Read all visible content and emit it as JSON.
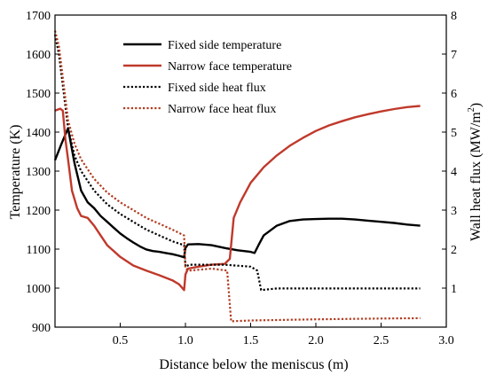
{
  "chart_data": {
    "type": "line",
    "xlabel": "Distance below the meniscus (m)",
    "ylabel_left": "Temperature (K)",
    "ylabel_right_base": "Wall heat flux (MW/m",
    "ylabel_right_sup": "2",
    "ylabel_right_tail": ")",
    "xlim": [
      0,
      3.0
    ],
    "ylim_left": [
      900,
      1700
    ],
    "ylim_right": [
      0,
      8
    ],
    "x_ticks": [
      "0.5",
      "1.0",
      "1.5",
      "2.0",
      "2.5",
      "3.0"
    ],
    "x_tick_values": [
      0.5,
      1.0,
      1.5,
      2.0,
      2.5,
      3.0
    ],
    "y_left_ticks": [
      "900",
      "1000",
      "1100",
      "1200",
      "1300",
      "1400",
      "1500",
      "1600",
      "1700"
    ],
    "y_left_tick_values": [
      900,
      1000,
      1100,
      1200,
      1300,
      1400,
      1500,
      1600,
      1700
    ],
    "y_right_ticks": [
      "1",
      "2",
      "3",
      "4",
      "5",
      "6",
      "7",
      "8"
    ],
    "y_right_tick_values": [
      1,
      2,
      3,
      4,
      5,
      6,
      7,
      8
    ],
    "legend_position": "top-right",
    "colors": {
      "black": "#000000",
      "red": "#c0392b",
      "dotted_red": "#b03a1e"
    },
    "series": [
      {
        "name": "Fixed side temperature",
        "axis": "left",
        "style": "solid",
        "color": "#000000",
        "points": [
          [
            0.0,
            1328
          ],
          [
            0.05,
            1370
          ],
          [
            0.1,
            1410
          ],
          [
            0.15,
            1320
          ],
          [
            0.2,
            1250
          ],
          [
            0.25,
            1220
          ],
          [
            0.3,
            1205
          ],
          [
            0.35,
            1185
          ],
          [
            0.4,
            1170
          ],
          [
            0.45,
            1155
          ],
          [
            0.5,
            1140
          ],
          [
            0.55,
            1128
          ],
          [
            0.6,
            1117
          ],
          [
            0.65,
            1107
          ],
          [
            0.7,
            1099
          ],
          [
            0.75,
            1095
          ],
          [
            0.8,
            1093
          ],
          [
            0.85,
            1090
          ],
          [
            0.9,
            1087
          ],
          [
            0.95,
            1083
          ],
          [
            0.99,
            1079
          ],
          [
            1.0,
            1103
          ],
          [
            1.02,
            1112
          ],
          [
            1.1,
            1113
          ],
          [
            1.2,
            1110
          ],
          [
            1.3,
            1103
          ],
          [
            1.4,
            1097
          ],
          [
            1.5,
            1093
          ],
          [
            1.53,
            1090
          ],
          [
            1.56,
            1110
          ],
          [
            1.6,
            1135
          ],
          [
            1.7,
            1160
          ],
          [
            1.8,
            1172
          ],
          [
            1.9,
            1176
          ],
          [
            2.0,
            1177
          ],
          [
            2.1,
            1178
          ],
          [
            2.2,
            1178
          ],
          [
            2.3,
            1176
          ],
          [
            2.4,
            1173
          ],
          [
            2.5,
            1170
          ],
          [
            2.6,
            1167
          ],
          [
            2.7,
            1163
          ],
          [
            2.8,
            1160
          ]
        ]
      },
      {
        "name": "Narrow face temperature",
        "axis": "left",
        "style": "solid",
        "color": "#c0392b",
        "points": [
          [
            0.0,
            1455
          ],
          [
            0.04,
            1460
          ],
          [
            0.06,
            1455
          ],
          [
            0.08,
            1380
          ],
          [
            0.1,
            1330
          ],
          [
            0.13,
            1250
          ],
          [
            0.17,
            1205
          ],
          [
            0.2,
            1185
          ],
          [
            0.25,
            1180
          ],
          [
            0.3,
            1160
          ],
          [
            0.35,
            1135
          ],
          [
            0.4,
            1110
          ],
          [
            0.5,
            1080
          ],
          [
            0.6,
            1058
          ],
          [
            0.7,
            1045
          ],
          [
            0.8,
            1033
          ],
          [
            0.9,
            1020
          ],
          [
            0.95,
            1010
          ],
          [
            0.99,
            995
          ],
          [
            1.0,
            1035
          ],
          [
            1.02,
            1050
          ],
          [
            1.1,
            1055
          ],
          [
            1.2,
            1060
          ],
          [
            1.3,
            1062
          ],
          [
            1.34,
            1075
          ],
          [
            1.37,
            1180
          ],
          [
            1.42,
            1220
          ],
          [
            1.5,
            1270
          ],
          [
            1.6,
            1310
          ],
          [
            1.7,
            1340
          ],
          [
            1.8,
            1365
          ],
          [
            1.9,
            1385
          ],
          [
            2.0,
            1403
          ],
          [
            2.1,
            1417
          ],
          [
            2.2,
            1428
          ],
          [
            2.3,
            1438
          ],
          [
            2.4,
            1446
          ],
          [
            2.5,
            1453
          ],
          [
            2.6,
            1459
          ],
          [
            2.7,
            1464
          ],
          [
            2.8,
            1467
          ]
        ]
      },
      {
        "name": "Fixed side heat flux",
        "axis": "right",
        "style": "dotted",
        "color": "#000000",
        "points": [
          [
            0.0,
            7.5
          ],
          [
            0.03,
            7.0
          ],
          [
            0.06,
            6.2
          ],
          [
            0.1,
            5.1
          ],
          [
            0.15,
            4.4
          ],
          [
            0.2,
            4.0
          ],
          [
            0.3,
            3.5
          ],
          [
            0.4,
            3.15
          ],
          [
            0.5,
            2.9
          ],
          [
            0.6,
            2.7
          ],
          [
            0.7,
            2.5
          ],
          [
            0.8,
            2.35
          ],
          [
            0.9,
            2.2
          ],
          [
            0.99,
            2.1
          ],
          [
            1.0,
            1.55
          ],
          [
            1.03,
            1.6
          ],
          [
            1.1,
            1.6
          ],
          [
            1.3,
            1.6
          ],
          [
            1.5,
            1.55
          ],
          [
            1.55,
            1.45
          ],
          [
            1.58,
            0.95
          ],
          [
            1.7,
            0.99
          ],
          [
            2.0,
            0.99
          ],
          [
            2.5,
            0.99
          ],
          [
            2.8,
            0.99
          ]
        ]
      },
      {
        "name": "Narrow face heat flux",
        "axis": "right",
        "style": "dotted",
        "color": "#b03a1e",
        "points": [
          [
            0.0,
            7.6
          ],
          [
            0.03,
            7.2
          ],
          [
            0.06,
            6.4
          ],
          [
            0.1,
            5.3
          ],
          [
            0.15,
            4.7
          ],
          [
            0.2,
            4.3
          ],
          [
            0.3,
            3.8
          ],
          [
            0.4,
            3.45
          ],
          [
            0.5,
            3.2
          ],
          [
            0.6,
            3.0
          ],
          [
            0.7,
            2.8
          ],
          [
            0.8,
            2.65
          ],
          [
            0.9,
            2.5
          ],
          [
            0.99,
            2.35
          ],
          [
            1.0,
            1.5
          ],
          [
            1.03,
            1.45
          ],
          [
            1.2,
            1.5
          ],
          [
            1.32,
            1.45
          ],
          [
            1.35,
            0.15
          ],
          [
            1.5,
            0.17
          ],
          [
            2.0,
            0.2
          ],
          [
            2.5,
            0.22
          ],
          [
            2.8,
            0.23
          ]
        ]
      }
    ]
  }
}
